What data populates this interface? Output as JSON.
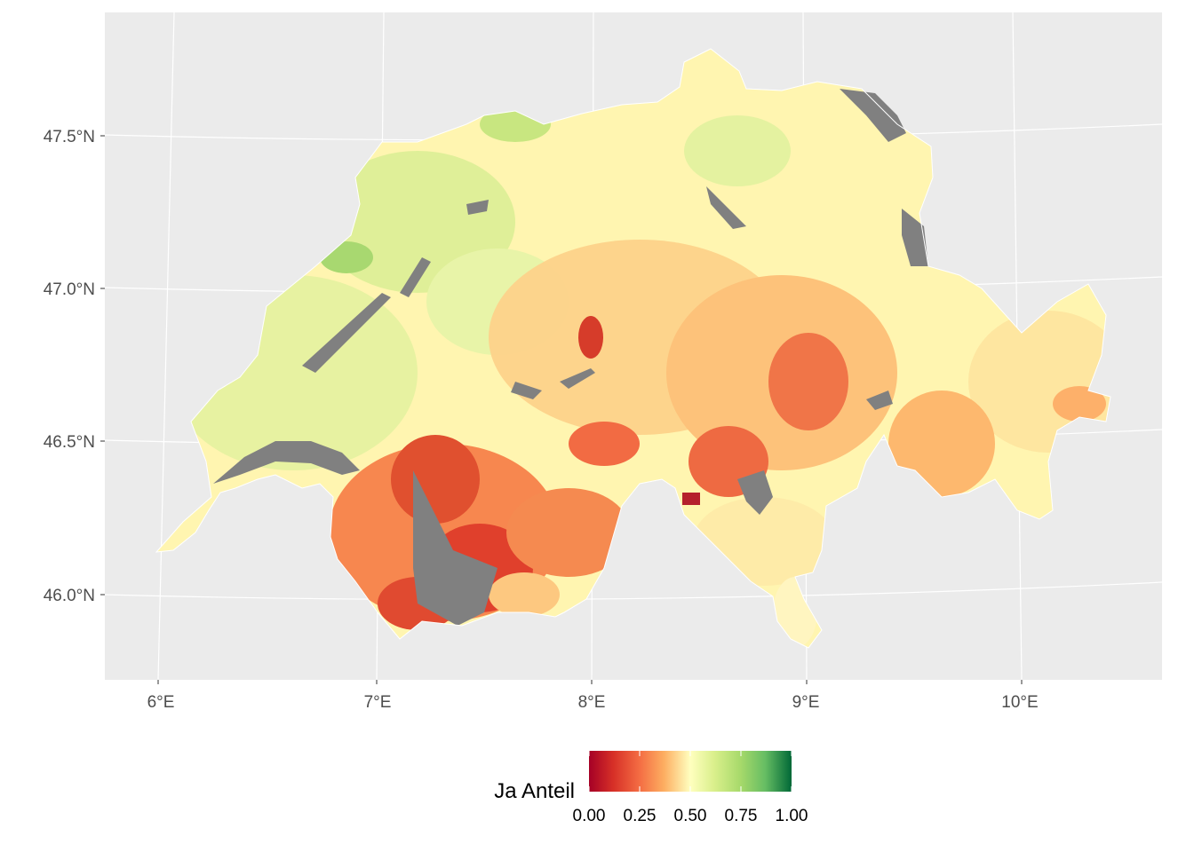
{
  "map": {
    "background": "#EBEBEB",
    "gridline_color": "#FFFFFF",
    "missing_color": "#808080",
    "x_ticks": [
      "6°E",
      "7°E",
      "8°E",
      "9°E",
      "10°E"
    ],
    "y_ticks": [
      "46.0°N",
      "46.5°N",
      "47.0°N",
      "47.5°N"
    ]
  },
  "legend": {
    "title": "Ja Anteil",
    "position": "bottom",
    "ticks": [
      "0.00",
      "0.25",
      "0.50",
      "0.75",
      "1.00"
    ],
    "colors": [
      "#A50026",
      "#F46D43",
      "#FDAE61",
      "#FEE08B",
      "#FFFFBF",
      "#D9EF8B",
      "#A6D96A",
      "#66BD63",
      "#006837"
    ]
  }
}
